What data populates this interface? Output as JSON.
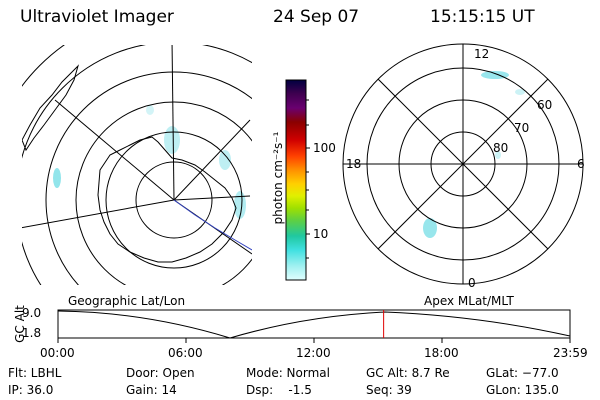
{
  "header": {
    "instrument": "Ultraviolet Imager",
    "date": "24 Sep 07",
    "time": "15:15:15 UT"
  },
  "colorbar": {
    "unit_label": "photon cm⁻²s⁻¹",
    "ticks": [
      "100",
      "10"
    ],
    "colors": [
      "#000040",
      "#400050",
      "#6a0070",
      "#8a0000",
      "#d00000",
      "#ff4000",
      "#ff9000",
      "#ffd000",
      "#e0f000",
      "#a0e000",
      "#60d040",
      "#20c8a0",
      "#40e0e0",
      "#a0f0f0",
      "#e0ffff"
    ]
  },
  "geographic_panel": {
    "label": "Geographic Lat/Lon"
  },
  "apex_panel": {
    "label": "Apex MLat/MLT",
    "mlt_labels": {
      "top": "12",
      "left": "18",
      "right": "6",
      "bottom": "0"
    },
    "lat_labels": [
      "60",
      "70",
      "80"
    ]
  },
  "altitude_plot": {
    "ylabel": "GC Alt",
    "yticks": [
      "9.0",
      "1.8"
    ],
    "xticks": [
      "00:00",
      "06:00",
      "12:00",
      "18:00",
      "23:59"
    ],
    "current_time_fraction": 0.636
  },
  "status": {
    "filter": "Flt: LBHL",
    "ip": "IP: 36.0",
    "door": "Door: Open",
    "gain": "Gain: 14",
    "mode": "Mode: Normal",
    "dsp": "Dsp:    -1.5",
    "gc_alt": "GC Alt: 8.7 Re",
    "seq": "Seq: 39",
    "glat": "GLat: −77.0",
    "glon": "GLon: 135.0"
  }
}
